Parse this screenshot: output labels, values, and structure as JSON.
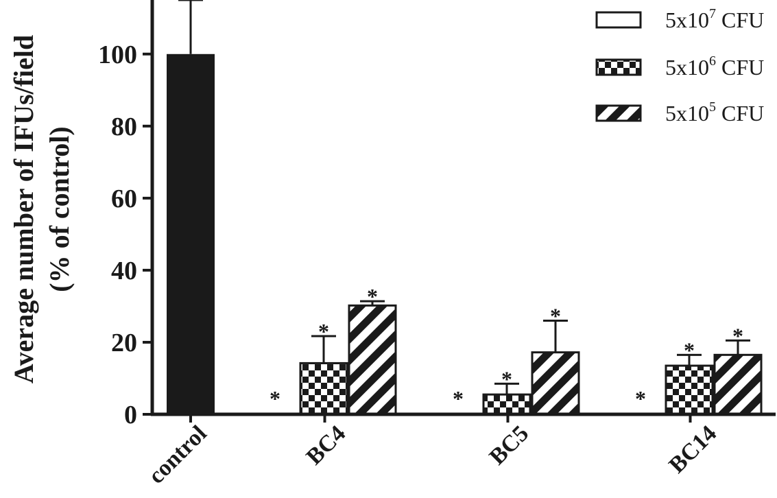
{
  "chart_data": {
    "type": "bar",
    "ylabel_line1": "Average number of IFUs/field",
    "ylabel_line2": "(% of control)",
    "ylim": [
      0,
      115
    ],
    "yticks": [
      0,
      20,
      40,
      60,
      80,
      100
    ],
    "categories": [
      "control",
      "BC4",
      "BC5",
      "BC14"
    ],
    "control": {
      "value": 100,
      "error": 15,
      "color": "#1a1a1a"
    },
    "series": [
      {
        "name_base": "5x10",
        "name_exp": "7",
        "name_unit": " CFU",
        "pattern": "empty",
        "values": [
          null,
          0,
          0,
          0
        ],
        "errors": [
          null,
          0,
          0,
          0
        ],
        "stars": [
          null,
          true,
          true,
          true
        ]
      },
      {
        "name_base": "5x10",
        "name_exp": "6",
        "name_unit": " CFU",
        "pattern": "checker",
        "values": [
          null,
          14.2,
          5.5,
          13.5
        ],
        "errors": [
          null,
          7.5,
          3,
          3
        ],
        "stars": [
          null,
          true,
          true,
          true
        ]
      },
      {
        "name_base": "5x10",
        "name_exp": "5",
        "name_unit": " CFU",
        "pattern": "diagonal",
        "values": [
          null,
          30.2,
          17.2,
          16.5
        ],
        "errors": [
          null,
          1.2,
          8.8,
          4
        ],
        "stars": [
          null,
          true,
          true,
          true
        ]
      }
    ],
    "star_symbol": "*",
    "legend_position": "top-right",
    "grid": false
  }
}
